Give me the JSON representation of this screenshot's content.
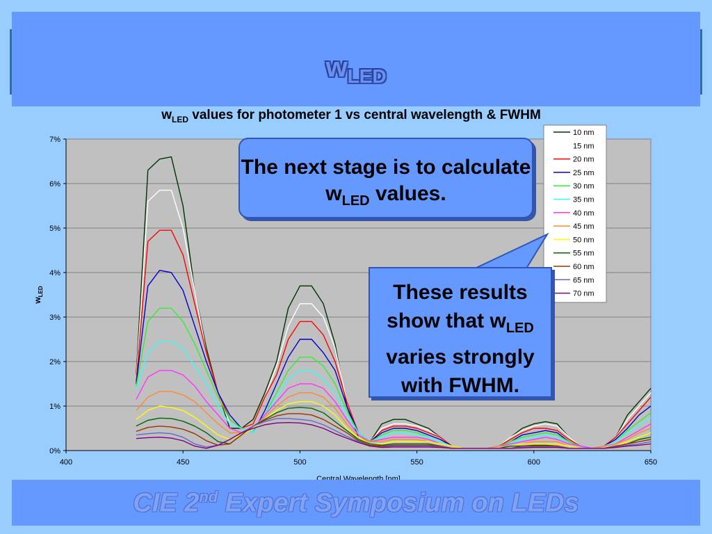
{
  "slide": {
    "title_main": "w",
    "title_sub": "LED",
    "footer_pre": "CIE 2",
    "footer_sup": "nd",
    "footer_post": " Expert Symposium on LEDs"
  },
  "callouts": {
    "first_pre": "The next stage is to calculate w",
    "first_sub": "LED",
    "first_post": " values.",
    "second_pre": "These results show that w",
    "second_sub": "LED",
    "second_post": " varies strongly with FWHM."
  },
  "chart_data": {
    "type": "line",
    "title_pre": "w",
    "title_sub": "LED",
    "title_post": " values for photometer 1 vs central wavelength & FWHM",
    "xlabel": "Central Wavelength [nm]",
    "ylabel": "w",
    "ylabel_sub": "LED",
    "xlim": [
      400,
      650
    ],
    "ylim": [
      0,
      7
    ],
    "x_ticks": [
      "400",
      "450",
      "500",
      "550",
      "600",
      "650"
    ],
    "y_ticks": [
      "0%",
      "1%",
      "2%",
      "3%",
      "4%",
      "5%",
      "6%",
      "7%"
    ],
    "grid": true,
    "legend_position": "top-right",
    "x": [
      430,
      435,
      440,
      445,
      450,
      455,
      460,
      465,
      470,
      475,
      480,
      485,
      490,
      495,
      500,
      505,
      510,
      515,
      520,
      525,
      530,
      535,
      540,
      545,
      550,
      555,
      560,
      565,
      570,
      575,
      580,
      585,
      590,
      595,
      600,
      605,
      610,
      615,
      620,
      625,
      630,
      635,
      640,
      645,
      650
    ],
    "series": [
      {
        "name": "10 nm",
        "color": "#003300",
        "values": [
          1.7,
          6.3,
          6.55,
          6.6,
          5.5,
          3.6,
          2.3,
          1.3,
          0.5,
          0.5,
          0.7,
          1.3,
          2.0,
          3.2,
          3.7,
          3.7,
          3.3,
          2.4,
          1.0,
          0.3,
          0.2,
          0.6,
          0.7,
          0.7,
          0.6,
          0.5,
          0.3,
          0.1,
          0.05,
          0.05,
          0.05,
          0.1,
          0.3,
          0.5,
          0.6,
          0.65,
          0.6,
          0.3,
          0.1,
          0.05,
          0.1,
          0.3,
          0.8,
          1.1,
          1.4
        ]
      },
      {
        "name": "15 nm",
        "color": "#FFFFFF",
        "values": [
          1.6,
          5.6,
          5.85,
          5.85,
          5.0,
          3.6,
          2.2,
          1.3,
          0.6,
          0.5,
          0.6,
          1.2,
          1.9,
          2.8,
          3.3,
          3.3,
          3.0,
          2.3,
          1.1,
          0.4,
          0.2,
          0.5,
          0.6,
          0.6,
          0.55,
          0.45,
          0.3,
          0.1,
          0.05,
          0.05,
          0.05,
          0.1,
          0.3,
          0.45,
          0.55,
          0.6,
          0.55,
          0.3,
          0.1,
          0.05,
          0.1,
          0.3,
          0.7,
          1.0,
          1.3
        ]
      },
      {
        "name": "20 nm",
        "color": "#FF0000",
        "values": [
          1.55,
          4.7,
          4.95,
          4.95,
          4.4,
          3.3,
          2.2,
          1.3,
          0.7,
          0.5,
          0.6,
          1.2,
          1.7,
          2.5,
          2.9,
          2.9,
          2.6,
          2.0,
          1.1,
          0.4,
          0.2,
          0.45,
          0.55,
          0.55,
          0.5,
          0.4,
          0.3,
          0.1,
          0.05,
          0.05,
          0.05,
          0.1,
          0.25,
          0.4,
          0.5,
          0.5,
          0.45,
          0.25,
          0.1,
          0.05,
          0.1,
          0.3,
          0.6,
          0.9,
          1.2
        ]
      },
      {
        "name": "25 nm",
        "color": "#0000CC",
        "values": [
          1.5,
          3.7,
          4.05,
          4.0,
          3.6,
          2.8,
          2.0,
          1.3,
          0.8,
          0.5,
          0.4,
          0.9,
          1.5,
          2.1,
          2.5,
          2.5,
          2.2,
          1.8,
          1.0,
          0.4,
          0.2,
          0.4,
          0.5,
          0.5,
          0.45,
          0.35,
          0.25,
          0.1,
          0.05,
          0.05,
          0.05,
          0.1,
          0.2,
          0.35,
          0.4,
          0.45,
          0.4,
          0.2,
          0.1,
          0.05,
          0.1,
          0.25,
          0.5,
          0.8,
          1.0
        ]
      },
      {
        "name": "30 nm",
        "color": "#33EE33",
        "values": [
          1.45,
          2.9,
          3.2,
          3.2,
          2.9,
          2.4,
          1.8,
          1.2,
          0.7,
          0.5,
          0.4,
          0.8,
          1.3,
          1.8,
          2.1,
          2.1,
          1.9,
          1.5,
          0.9,
          0.4,
          0.2,
          0.35,
          0.45,
          0.45,
          0.4,
          0.3,
          0.2,
          0.1,
          0.05,
          0.05,
          0.05,
          0.1,
          0.2,
          0.3,
          0.35,
          0.4,
          0.35,
          0.2,
          0.1,
          0.05,
          0.1,
          0.2,
          0.45,
          0.65,
          0.85
        ]
      },
      {
        "name": "35 nm",
        "color": "#33FFFF",
        "values": [
          1.35,
          2.2,
          2.45,
          2.45,
          2.3,
          1.9,
          1.5,
          1.0,
          0.6,
          0.5,
          0.4,
          0.8,
          1.2,
          1.6,
          1.8,
          1.8,
          1.6,
          1.3,
          0.8,
          0.4,
          0.2,
          0.3,
          0.4,
          0.4,
          0.35,
          0.3,
          0.2,
          0.1,
          0.05,
          0.05,
          0.05,
          0.1,
          0.15,
          0.25,
          0.3,
          0.35,
          0.3,
          0.15,
          0.1,
          0.05,
          0.1,
          0.2,
          0.4,
          0.55,
          0.75
        ]
      },
      {
        "name": "40 nm",
        "color": "#FF33FF",
        "values": [
          1.15,
          1.65,
          1.8,
          1.8,
          1.7,
          1.45,
          1.1,
          0.8,
          0.5,
          0.4,
          0.5,
          0.8,
          1.1,
          1.4,
          1.5,
          1.5,
          1.4,
          1.1,
          0.7,
          0.35,
          0.2,
          0.25,
          0.3,
          0.3,
          0.3,
          0.25,
          0.15,
          0.1,
          0.05,
          0.05,
          0.05,
          0.1,
          0.15,
          0.2,
          0.25,
          0.3,
          0.25,
          0.15,
          0.1,
          0.05,
          0.1,
          0.15,
          0.3,
          0.45,
          0.6
        ]
      },
      {
        "name": "45 nm",
        "color": "#FF8833",
        "values": [
          0.9,
          1.2,
          1.33,
          1.33,
          1.25,
          1.1,
          0.85,
          0.6,
          0.4,
          0.4,
          0.5,
          0.75,
          1.0,
          1.2,
          1.3,
          1.3,
          1.2,
          0.95,
          0.6,
          0.3,
          0.2,
          0.2,
          0.25,
          0.25,
          0.25,
          0.2,
          0.15,
          0.1,
          0.05,
          0.05,
          0.05,
          0.1,
          0.1,
          0.15,
          0.2,
          0.2,
          0.2,
          0.1,
          0.05,
          0.05,
          0.1,
          0.15,
          0.25,
          0.4,
          0.5
        ]
      },
      {
        "name": "50 nm",
        "color": "#FFFF00",
        "values": [
          0.7,
          0.9,
          1.0,
          0.97,
          0.9,
          0.75,
          0.55,
          0.35,
          0.25,
          0.35,
          0.5,
          0.7,
          0.9,
          1.05,
          1.1,
          1.1,
          1.0,
          0.8,
          0.5,
          0.3,
          0.15,
          0.15,
          0.2,
          0.2,
          0.2,
          0.2,
          0.15,
          0.1,
          0.05,
          0.05,
          0.05,
          0.05,
          0.1,
          0.15,
          0.15,
          0.15,
          0.15,
          0.1,
          0.05,
          0.05,
          0.05,
          0.1,
          0.2,
          0.3,
          0.4
        ]
      },
      {
        "name": "55 nm",
        "color": "#006600",
        "values": [
          0.55,
          0.68,
          0.73,
          0.72,
          0.66,
          0.55,
          0.4,
          0.2,
          0.15,
          0.35,
          0.55,
          0.7,
          0.85,
          0.95,
          0.97,
          0.95,
          0.85,
          0.65,
          0.45,
          0.25,
          0.15,
          0.12,
          0.15,
          0.15,
          0.15,
          0.15,
          0.1,
          0.05,
          0.05,
          0.05,
          0.05,
          0.05,
          0.1,
          0.1,
          0.12,
          0.12,
          0.1,
          0.05,
          0.05,
          0.05,
          0.05,
          0.1,
          0.15,
          0.25,
          0.3
        ]
      },
      {
        "name": "60 nm",
        "color": "#993300",
        "values": [
          0.43,
          0.52,
          0.55,
          0.53,
          0.48,
          0.38,
          0.22,
          0.12,
          0.15,
          0.35,
          0.55,
          0.68,
          0.78,
          0.83,
          0.83,
          0.8,
          0.7,
          0.55,
          0.4,
          0.22,
          0.12,
          0.1,
          0.12,
          0.12,
          0.12,
          0.12,
          0.1,
          0.05,
          0.05,
          0.05,
          0.05,
          0.05,
          0.05,
          0.1,
          0.1,
          0.1,
          0.1,
          0.05,
          0.05,
          0.05,
          0.05,
          0.1,
          0.15,
          0.2,
          0.25
        ]
      },
      {
        "name": "65 nm",
        "color": "#6666CC",
        "values": [
          0.35,
          0.38,
          0.4,
          0.38,
          0.3,
          0.15,
          0.08,
          0.12,
          0.25,
          0.4,
          0.55,
          0.65,
          0.72,
          0.72,
          0.7,
          0.67,
          0.58,
          0.45,
          0.32,
          0.2,
          0.1,
          0.08,
          0.1,
          0.1,
          0.1,
          0.1,
          0.08,
          0.05,
          0.05,
          0.05,
          0.05,
          0.05,
          0.05,
          0.08,
          0.08,
          0.08,
          0.08,
          0.05,
          0.05,
          0.05,
          0.05,
          0.08,
          0.12,
          0.15,
          0.2
        ]
      },
      {
        "name": "70 nm",
        "color": "#800080",
        "values": [
          0.27,
          0.29,
          0.3,
          0.28,
          0.22,
          0.1,
          0.05,
          0.12,
          0.25,
          0.4,
          0.5,
          0.58,
          0.62,
          0.63,
          0.62,
          0.58,
          0.5,
          0.38,
          0.28,
          0.18,
          0.1,
          0.07,
          0.08,
          0.08,
          0.08,
          0.08,
          0.07,
          0.05,
          0.05,
          0.05,
          0.05,
          0.05,
          0.05,
          0.06,
          0.07,
          0.07,
          0.07,
          0.05,
          0.05,
          0.05,
          0.05,
          0.07,
          0.1,
          0.12,
          0.15
        ]
      }
    ]
  }
}
